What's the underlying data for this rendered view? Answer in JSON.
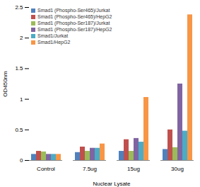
{
  "chart_data": {
    "type": "bar",
    "categories": [
      "Control",
      "7.5ug",
      "15ug",
      "30ug"
    ],
    "x_label": "Nuclear Lysate",
    "y_label": "OD450nm",
    "ylim": [
      0,
      2.5
    ],
    "yticks": [
      0,
      0.5,
      1,
      1.5,
      2,
      2.5
    ],
    "grid": false,
    "legend": "top-left",
    "series": [
      {
        "name": "Smad1 (Phospho-Ser465)/Jurkat",
        "color": "#4f81bd",
        "values": [
          0.1,
          0.13,
          0.15,
          0.18
        ]
      },
      {
        "name": "Smad1 (Phospho-Ser465)/HepG2",
        "color": "#c0504d",
        "values": [
          0.15,
          0.22,
          0.34,
          0.5
        ]
      },
      {
        "name": "Smad1 (Phospho-Ser187)/Jurkat",
        "color": "#9bbb59",
        "values": [
          0.14,
          0.15,
          0.15,
          0.21
        ]
      },
      {
        "name": "Smad1 (Phospho-Ser187)/HepG2",
        "color": "#8064a2",
        "values": [
          0.1,
          0.2,
          0.36,
          1.25
        ]
      },
      {
        "name": "Smad1/Jurkat",
        "color": "#4bacc6",
        "values": [
          0.1,
          0.2,
          0.3,
          0.48
        ]
      },
      {
        "name": "Smad1/HepG2",
        "color": "#f79646",
        "values": [
          0.1,
          0.27,
          1.03,
          2.38
        ]
      }
    ]
  }
}
